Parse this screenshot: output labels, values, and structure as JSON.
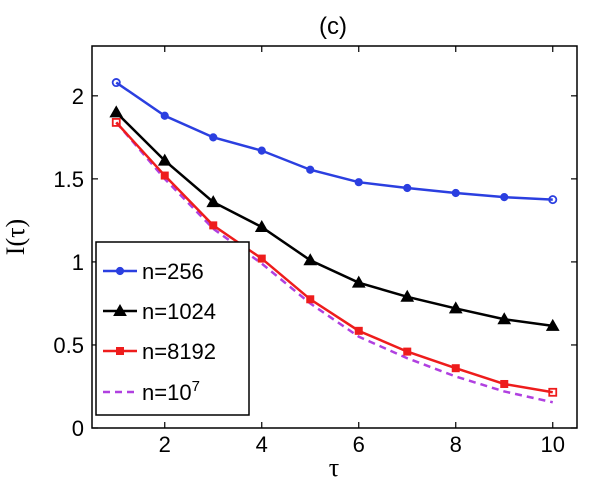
{
  "chart_data": {
    "type": "line",
    "title": "(c)",
    "xlabel": "τ",
    "ylabel": "I(τ)",
    "xlim": [
      0.5,
      10.5
    ],
    "ylim": [
      0,
      2.3
    ],
    "xticks": [
      2,
      4,
      6,
      8,
      10
    ],
    "yticks": [
      0,
      0.5,
      1,
      1.5,
      2
    ],
    "xtick_labels": [
      "2",
      "4",
      "6",
      "8",
      "10"
    ],
    "ytick_labels": [
      "0",
      "0.5",
      "1",
      "1.5",
      "2"
    ],
    "grid": false,
    "legend_position": "bottom-left",
    "x": [
      1,
      2,
      3,
      4,
      5,
      6,
      7,
      8,
      9,
      10
    ],
    "series": [
      {
        "name": "n=256",
        "color": "#2b3fe0",
        "marker": "circle",
        "dashed": false,
        "values": [
          2.08,
          1.88,
          1.75,
          1.67,
          1.555,
          1.48,
          1.445,
          1.415,
          1.39,
          1.375
        ]
      },
      {
        "name": "n=1024",
        "color": "#000000",
        "marker": "triangle",
        "dashed": false,
        "values": [
          1.9,
          1.61,
          1.36,
          1.21,
          1.01,
          0.875,
          0.79,
          0.72,
          0.655,
          0.615
        ]
      },
      {
        "name": "n=8192",
        "color": "#ee1c1c",
        "marker": "square",
        "dashed": false,
        "values": [
          1.84,
          1.52,
          1.22,
          1.02,
          0.775,
          0.585,
          0.46,
          0.36,
          0.265,
          0.215
        ]
      },
      {
        "name": "n=10",
        "name_superscript": "7",
        "color": "#b040e0",
        "marker": "none",
        "dashed": true,
        "values": [
          1.84,
          1.5,
          1.2,
          0.99,
          0.75,
          0.55,
          0.42,
          0.31,
          0.22,
          0.155
        ]
      }
    ]
  }
}
